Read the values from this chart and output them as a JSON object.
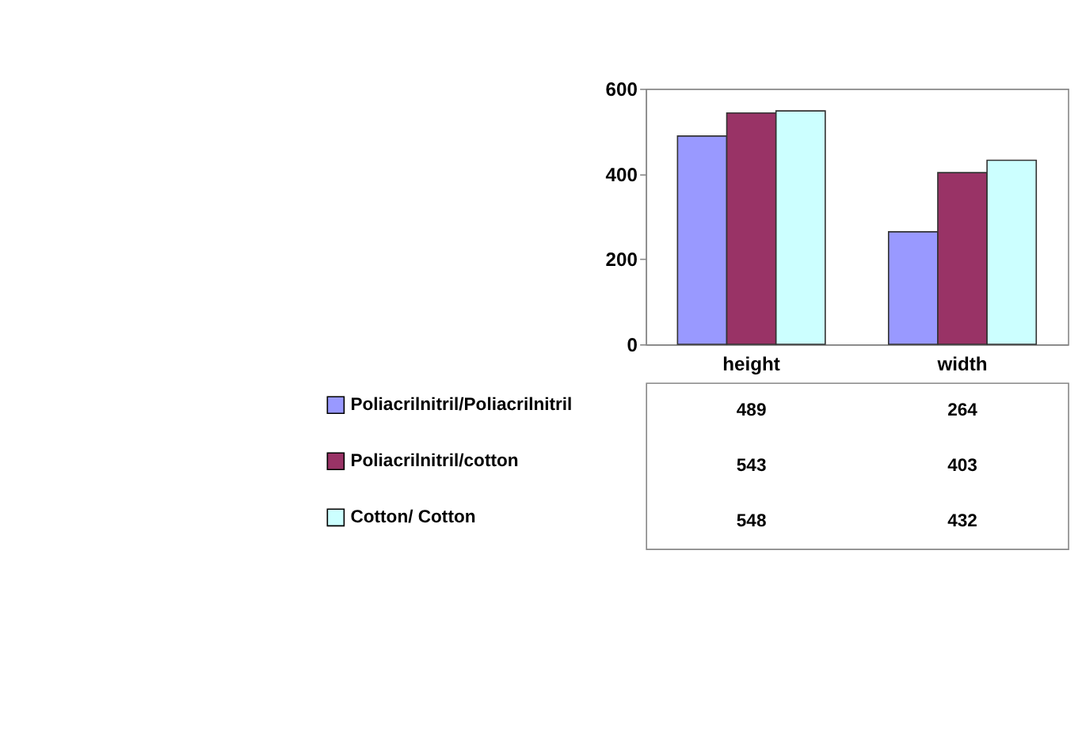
{
  "chart_data": {
    "type": "bar",
    "categories": [
      "height",
      "width"
    ],
    "series": [
      {
        "name": "Poliacrilnitril/Poliacrilnitril",
        "color": "#9999ff",
        "values": [
          489,
          264
        ]
      },
      {
        "name": "Poliacrilnitril/cotton",
        "color": "#993366",
        "values": [
          543,
          403
        ]
      },
      {
        "name": "Cotton/ Cotton",
        "color": "#ccffff",
        "values": [
          548,
          432
        ]
      }
    ],
    "ylim": [
      0,
      600
    ],
    "yticks": [
      0,
      200,
      400,
      600
    ],
    "grid": false,
    "legend": "bottom left",
    "data_labels": true
  }
}
